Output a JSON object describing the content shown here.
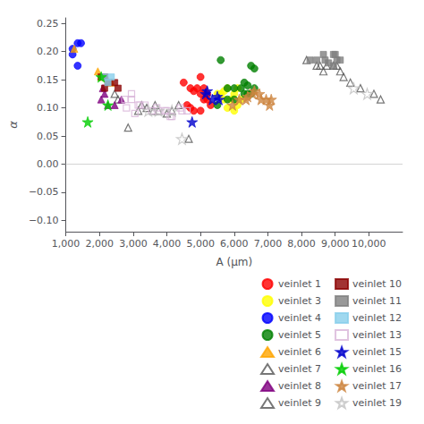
{
  "chart_data": {
    "type": "scatter",
    "xlabel": "A (μm)",
    "ylabel": "α",
    "xlim": [
      1000,
      11000
    ],
    "ylim": [
      -0.12,
      0.26
    ],
    "xticks": [
      {
        "value": 1000,
        "label": "1,000"
      },
      {
        "value": 2000,
        "label": "2,000"
      },
      {
        "value": 3000,
        "label": "3,000"
      },
      {
        "value": 4000,
        "label": "4,000"
      },
      {
        "value": 5000,
        "label": "5,000"
      },
      {
        "value": 6000,
        "label": "6,000"
      },
      {
        "value": 7000,
        "label": "7,000"
      },
      {
        "value": 8000,
        "label": "8,000"
      },
      {
        "value": 9000,
        "label": "9,000"
      },
      {
        "value": 10000,
        "label": "10,000"
      }
    ],
    "yticks": [
      {
        "value": -0.1,
        "label": "−0.10"
      },
      {
        "value": -0.05,
        "label": "−0.05"
      },
      {
        "value": 0.0,
        "label": "0.00"
      },
      0.05,
      {
        "value": 0.1,
        "label": "0.10"
      },
      0.15,
      {
        "value": 0.2,
        "label": "0.20"
      },
      0.25
    ],
    "hline_y": 0.0,
    "grid": false,
    "legend": "lower right",
    "series": [
      {
        "name": "veinlet 1",
        "color": "#ff0000",
        "marker": "circle",
        "x": [
          4500,
          4700,
          4800,
          4900,
          5000,
          5100,
          5200,
          5300,
          5000,
          4600,
          5100,
          5200,
          4800,
          4700,
          5000
        ],
        "values": [
          0.145,
          0.135,
          0.13,
          0.135,
          0.125,
          0.115,
          0.125,
          0.105,
          0.095,
          0.105,
          0.135,
          0.115,
          0.095,
          0.1,
          0.155
        ]
      },
      {
        "name": "veinlet 3",
        "color": "#ffff00",
        "marker": "circle",
        "x": [
          5600,
          5800,
          5900,
          6000,
          6100,
          6200,
          6100,
          5700,
          5500,
          5800,
          6000,
          5700
        ],
        "values": [
          0.125,
          0.135,
          0.115,
          0.125,
          0.135,
          0.115,
          0.105,
          0.115,
          0.125,
          0.1,
          0.095,
          0.13
        ]
      },
      {
        "name": "veinlet 4",
        "color": "#0000ff",
        "marker": "circle",
        "x": [
          1200,
          1350,
          1450,
          1350,
          1200
        ],
        "values": [
          0.205,
          0.215,
          0.215,
          0.175,
          0.195
        ]
      },
      {
        "name": "veinlet 5",
        "color": "#008000",
        "marker": "circle",
        "x": [
          5800,
          6000,
          6200,
          6300,
          6400,
          6500,
          6600,
          5500,
          5800,
          6000,
          6300,
          6400,
          6500,
          6600,
          5600
        ],
        "values": [
          0.135,
          0.135,
          0.135,
          0.125,
          0.125,
          0.125,
          0.135,
          0.105,
          0.115,
          0.115,
          0.145,
          0.14,
          0.175,
          0.17,
          0.185
        ]
      },
      {
        "name": "veinlet 6",
        "color": "#ffa500",
        "marker": "triangle",
        "x": [
          1250,
          2050,
          2200,
          2350,
          1950
        ],
        "values": [
          0.205,
          0.155,
          0.155,
          0.145,
          0.165
        ]
      },
      {
        "name": "veinlet 7",
        "color": "#555555",
        "marker": "triangle-open",
        "x": [
          2850,
          4650,
          3150,
          3250,
          3650,
          3750,
          4150,
          4350,
          2450,
          2550,
          3400,
          3600,
          4000
        ],
        "values": [
          0.065,
          0.045,
          0.095,
          0.105,
          0.105,
          0.095,
          0.095,
          0.105,
          0.125,
          0.115,
          0.1,
          0.095,
          0.09
        ]
      },
      {
        "name": "veinlet 8",
        "color": "#800080",
        "marker": "triangle",
        "x": [
          2050,
          2250,
          2450,
          2650,
          2150,
          2100
        ],
        "values": [
          0.115,
          0.105,
          0.105,
          0.115,
          0.125,
          0.135
        ]
      },
      {
        "name": "veinlet 9",
        "color": "#555555",
        "marker": "triangle-open",
        "x": [
          8150,
          8450,
          8550,
          8650,
          8750,
          8950,
          9050,
          9150,
          9250,
          9450,
          9750,
          10150,
          10350
        ],
        "values": [
          0.185,
          0.175,
          0.175,
          0.165,
          0.175,
          0.175,
          0.175,
          0.165,
          0.155,
          0.145,
          0.135,
          0.125,
          0.115
        ]
      },
      {
        "name": "veinlet 10",
        "color": "#8b0000",
        "marker": "square",
        "x": [
          2050,
          2150,
          2250,
          2450,
          2550,
          2150
        ],
        "values": [
          0.155,
          0.155,
          0.145,
          0.145,
          0.135,
          0.135
        ]
      },
      {
        "name": "veinlet 11",
        "color": "#808080",
        "marker": "square",
        "x": [
          8250,
          8450,
          8650,
          8950,
          9050,
          9150,
          8950,
          8700,
          9000,
          8800
        ],
        "values": [
          0.185,
          0.185,
          0.195,
          0.195,
          0.185,
          0.185,
          0.175,
          0.185,
          0.195,
          0.18
        ]
      },
      {
        "name": "veinlet 12",
        "color": "#87ceeb",
        "marker": "square",
        "x": [
          2150,
          2350,
          2250
        ],
        "values": [
          0.155,
          0.155,
          0.145
        ]
      },
      {
        "name": "veinlet 13",
        "color": "#d8b4d8",
        "marker": "square-open",
        "x": [
          2750,
          2950,
          3150,
          3350,
          3550,
          3750,
          3950,
          4150,
          4450,
          2950,
          3050,
          3700,
          4100,
          2800,
          3200,
          4000,
          4400,
          4600
        ],
        "values": [
          0.115,
          0.115,
          0.105,
          0.105,
          0.095,
          0.095,
          0.095,
          0.085,
          0.095,
          0.125,
          0.09,
          0.1,
          0.085,
          0.1,
          0.105,
          0.095,
          0.1,
          0.095
        ]
      },
      {
        "name": "veinlet 15",
        "color": "#0000cd",
        "marker": "star",
        "x": [
          5150,
          5350,
          5550,
          4750,
          5500,
          5200
        ],
        "values": [
          0.125,
          0.115,
          0.115,
          0.075,
          0.12,
          0.13
        ]
      },
      {
        "name": "veinlet 16",
        "color": "#00cd00",
        "marker": "star",
        "x": [
          2050,
          2250,
          1650
        ],
        "values": [
          0.155,
          0.105,
          0.075
        ]
      },
      {
        "name": "veinlet 17",
        "color": "#cd853f",
        "marker": "star",
        "x": [
          6150,
          6350,
          6550,
          6750,
          6950,
          7050,
          5950,
          6400,
          6600,
          6800,
          7100
        ],
        "values": [
          0.115,
          0.115,
          0.125,
          0.125,
          0.115,
          0.105,
          0.105,
          0.12,
          0.13,
          0.115,
          0.115
        ]
      },
      {
        "name": "veinlet 19",
        "color": "#c0c0c0",
        "marker": "star-open",
        "x": [
          3450,
          3750,
          4150,
          4450,
          9550,
          9950
        ],
        "values": [
          0.095,
          0.095,
          0.095,
          0.045,
          0.135,
          0.125
        ]
      }
    ]
  }
}
